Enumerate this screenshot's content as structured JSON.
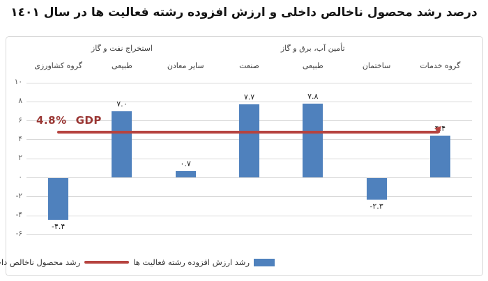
{
  "title": "درصد رشد محصول ناخالص داخلی و ارزش افزوده رشته فعالیت ها در سال ١٤٠١",
  "gdp_annotation": {
    "value_text": "4.8%",
    "label": "GDP"
  },
  "legend": {
    "line_label": "رشد محصول ناخالص داخلی (رشد اقتصادی)",
    "bars_label": "رشد ارزش افزوده رشته فعالیت ها"
  },
  "chart_data": {
    "type": "bar",
    "title": "درصد رشد محصول ناخالص داخلی و ارزش افزوده رشته فعالیت ها در سال ١٤٠١",
    "categories": [
      "گروه کشاورزی",
      "استخراج نفت و گاز طبیعی",
      "سایر معادن",
      "صنعت",
      "تأمین آب، برق و گاز طبیعی",
      "ساختمان",
      "گروه خدمات"
    ],
    "category_label_lines": [
      [
        "گروه کشاورزی"
      ],
      [
        "استخراج نفت و گاز",
        "طبیعی"
      ],
      [
        "سایر معادن"
      ],
      [
        "صنعت"
      ],
      [
        "تأمین آب، برق و گاز",
        "طبیعی"
      ],
      [
        "ساختمان"
      ],
      [
        "گروه خدمات"
      ]
    ],
    "series": [
      {
        "name": "رشد ارزش افزوده رشته فعالیت ها",
        "values": [
          -4.4,
          7.0,
          0.7,
          7.7,
          7.8,
          -2.3,
          4.4
        ]
      }
    ],
    "values": [
      -4.4,
      7.0,
      0.7,
      7.7,
      7.8,
      -2.3,
      4.4
    ],
    "value_labels": [
      "-۴.۴",
      "۷.۰",
      "۰.۷",
      "۷.۷",
      "۷.۸",
      "-۲.۳",
      "۴.۴"
    ],
    "reference_line": {
      "name": "رشد محصول ناخالص داخلی (رشد اقتصادی)",
      "value": 4.8,
      "label": "4.8% GDP"
    },
    "y_ticks": [
      10,
      8,
      6,
      4,
      2,
      0,
      -2,
      -4,
      -6
    ],
    "y_tick_labels": [
      "۱۰",
      "۸",
      "۶",
      "۴",
      "۲",
      "۰",
      "-۲",
      "-۴",
      "-۶"
    ],
    "ylim": [
      -6,
      10
    ],
    "grid": true,
    "legend_position": "bottom",
    "colors": {
      "bar": "#4f81bd",
      "reference_line": "#b6433f",
      "gdp_text": "#9a3734",
      "grid": "#d9d9d9",
      "tick_text": "#595959",
      "category_text": "#404040"
    }
  }
}
